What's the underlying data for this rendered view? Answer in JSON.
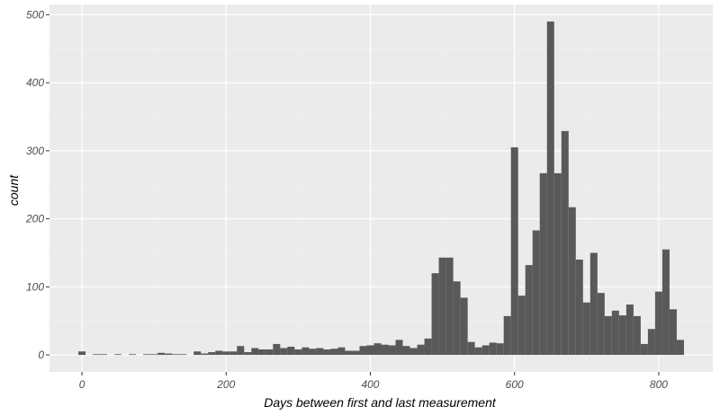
{
  "chart_data": {
    "type": "bar",
    "subtype": "histogram",
    "xlabel": "Days between first and last measurement",
    "ylabel": "count",
    "xlim": [
      -45,
      875
    ],
    "ylim": [
      -25,
      515
    ],
    "xticks": [
      0,
      200,
      400,
      600,
      800
    ],
    "yticks": [
      0,
      100,
      200,
      300,
      400,
      500
    ],
    "bin_width": 10,
    "bin_centers": [
      0,
      20,
      30,
      50,
      70,
      90,
      100,
      110,
      120,
      130,
      140,
      160,
      170,
      180,
      190,
      200,
      210,
      220,
      230,
      240,
      250,
      260,
      270,
      280,
      290,
      300,
      310,
      320,
      330,
      340,
      350,
      360,
      370,
      380,
      390,
      400,
      410,
      420,
      430,
      440,
      450,
      460,
      470,
      480,
      490,
      500,
      510,
      520,
      530,
      540,
      550,
      560,
      570,
      580,
      590,
      600,
      610,
      620,
      630,
      640,
      650,
      660,
      670,
      680,
      690,
      700,
      710,
      720,
      730,
      740,
      750,
      760,
      770,
      780,
      790,
      800,
      810,
      820,
      830
    ],
    "counts": [
      5,
      1,
      1,
      1,
      1,
      1,
      1,
      3,
      2,
      1,
      1,
      5,
      2,
      4,
      6,
      5,
      5,
      13,
      4,
      10,
      8,
      8,
      16,
      10,
      12,
      8,
      11,
      9,
      10,
      8,
      9,
      11,
      6,
      6,
      13,
      14,
      17,
      15,
      14,
      22,
      13,
      10,
      15,
      24,
      120,
      143,
      143,
      108,
      84,
      19,
      11,
      14,
      18,
      17,
      57,
      305,
      87,
      132,
      183,
      267,
      490,
      267,
      329,
      217,
      140,
      77,
      150,
      91,
      57,
      65,
      58,
      74,
      57,
      16,
      38,
      93,
      155,
      67,
      22
    ],
    "colors": {
      "panel_background": "#ebebeb",
      "grid_major": "#ffffff",
      "grid_minor": "#f4f4f4",
      "bar_fill": "#595959",
      "tick_text": "#4d4d4d",
      "axis_title": "#000000"
    },
    "grid": true
  }
}
